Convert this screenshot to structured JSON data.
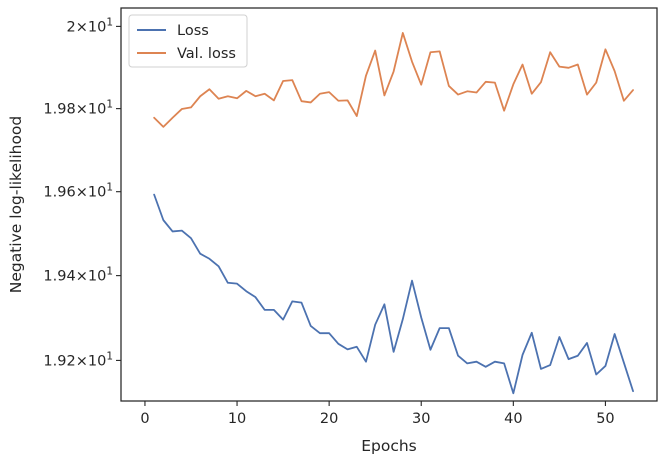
{
  "chart_data": {
    "type": "line",
    "xlabel": "Epochs",
    "ylabel": "Negative log-likelihood",
    "xlim": [
      -2.6,
      55.6
    ],
    "ylim": [
      19.105,
      20.045
    ],
    "yscale": "log",
    "grid": false,
    "legend_position": "top-left",
    "x_ticks": [
      0,
      10,
      20,
      30,
      40,
      50
    ],
    "x_tick_labels": [
      "0",
      "10",
      "20",
      "30",
      "40",
      "50"
    ],
    "y_ticks": [
      19.2,
      19.4,
      19.6,
      19.8,
      20.0
    ],
    "y_tick_labels": [
      {
        "base": "1.92",
        "exp": "1"
      },
      {
        "base": "1.94",
        "exp": "1"
      },
      {
        "base": "1.96",
        "exp": "1"
      },
      {
        "base": "1.98",
        "exp": "1"
      },
      {
        "base": "2",
        "exp": "1"
      }
    ],
    "x": [
      1,
      2,
      3,
      4,
      5,
      6,
      7,
      8,
      9,
      10,
      11,
      12,
      13,
      14,
      15,
      16,
      17,
      18,
      19,
      20,
      21,
      22,
      23,
      24,
      25,
      26,
      27,
      28,
      29,
      30,
      31,
      32,
      33,
      34,
      35,
      36,
      37,
      38,
      39,
      40,
      41,
      42,
      43,
      44,
      45,
      46,
      47,
      48,
      49,
      50,
      51,
      52,
      53
    ],
    "series": [
      {
        "name": "Loss",
        "color": "#4c72b0",
        "values": [
          19.593,
          19.532,
          19.505,
          19.507,
          19.489,
          19.452,
          19.44,
          19.422,
          19.383,
          19.381,
          19.363,
          19.349,
          19.319,
          19.319,
          19.296,
          19.339,
          19.336,
          19.281,
          19.264,
          19.264,
          19.239,
          19.226,
          19.232,
          19.197,
          19.284,
          19.332,
          19.22,
          19.297,
          19.388,
          19.301,
          19.225,
          19.276,
          19.276,
          19.211,
          19.193,
          19.197,
          19.185,
          19.197,
          19.193,
          19.123,
          19.213,
          19.265,
          19.18,
          19.189,
          19.255,
          19.203,
          19.211,
          19.241,
          19.167,
          19.187,
          19.262,
          19.195,
          19.128
        ]
      },
      {
        "name": "Val. loss",
        "color": "#dd8452",
        "values": [
          19.778,
          19.756,
          19.778,
          19.799,
          19.803,
          19.83,
          19.847,
          19.824,
          19.83,
          19.825,
          19.843,
          19.83,
          19.836,
          19.82,
          19.867,
          19.869,
          19.818,
          19.815,
          19.836,
          19.84,
          19.819,
          19.82,
          19.782,
          19.88,
          19.941,
          19.832,
          19.89,
          19.984,
          19.914,
          19.858,
          19.937,
          19.939,
          19.855,
          19.834,
          19.842,
          19.839,
          19.865,
          19.863,
          19.795,
          19.859,
          19.907,
          19.836,
          19.864,
          19.937,
          19.902,
          19.899,
          19.907,
          19.834,
          19.863,
          19.944,
          19.891,
          19.819,
          19.845
        ]
      }
    ]
  }
}
